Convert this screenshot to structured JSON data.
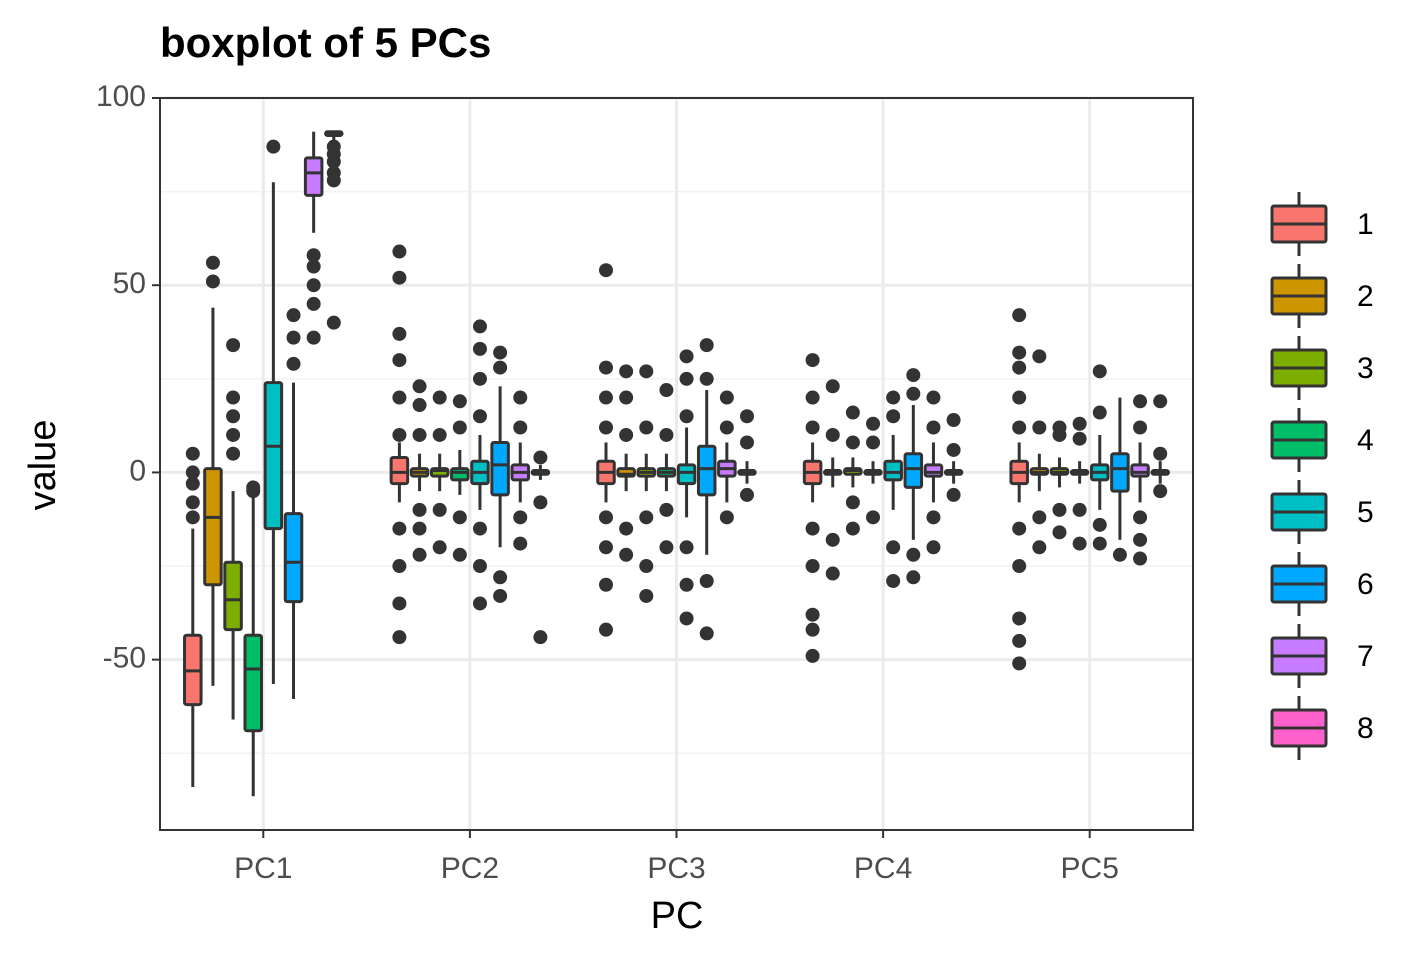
{
  "chart_data": {
    "type": "boxplot",
    "title": "boxplot of 5 PCs",
    "x_label": "PC",
    "y_label": "value",
    "categories": [
      "PC1",
      "PC2",
      "PC3",
      "PC4",
      "PC5"
    ],
    "ylim": [
      -95.5,
      100
    ],
    "yticks": [
      -50,
      0,
      50,
      100
    ],
    "minor_yticks": [
      -75,
      -25,
      25,
      75
    ],
    "grid": true,
    "legend_position": "right",
    "series": [
      {
        "name": "1",
        "color": "#F8766D",
        "boxes": [
          {
            "low": -84,
            "q1": -62,
            "median": -53,
            "q3": -43.5,
            "high": -15,
            "outliers": [
              -12,
              -8,
              -3,
              0,
              5
            ]
          },
          {
            "low": -8,
            "q1": -3,
            "median": 0,
            "q3": 4,
            "high": 8,
            "outliers": [
              -44,
              -35,
              -25,
              -15,
              10,
              20,
              30,
              37,
              52,
              59
            ]
          },
          {
            "low": -8,
            "q1": -3,
            "median": 0,
            "q3": 3,
            "high": 8,
            "outliers": [
              -42,
              -30,
              -20,
              -12,
              12,
              20,
              28,
              54
            ]
          },
          {
            "low": -8,
            "q1": -3,
            "median": 0,
            "q3": 3,
            "high": 8,
            "outliers": [
              -49,
              -42,
              -38,
              -25,
              -15,
              12,
              20,
              30
            ]
          },
          {
            "low": -8,
            "q1": -3,
            "median": 0,
            "q3": 3,
            "high": 8,
            "outliers": [
              -51,
              -45,
              -39,
              -25,
              -15,
              12,
              20,
              28,
              32,
              42
            ]
          }
        ]
      },
      {
        "name": "2",
        "color": "#CD9600",
        "boxes": [
          {
            "low": -57,
            "q1": -30,
            "median": -12,
            "q3": 1,
            "high": 44,
            "outliers": [
              51,
              56
            ]
          },
          {
            "low": -5,
            "q1": -1,
            "median": 0,
            "q3": 1,
            "high": 5,
            "outliers": [
              -22,
              -15,
              -10,
              10,
              18,
              23
            ]
          },
          {
            "low": -5,
            "q1": -1,
            "median": -0.5,
            "q3": 1,
            "high": 5,
            "outliers": [
              -22,
              -15,
              10,
              20,
              27
            ]
          },
          {
            "low": -4,
            "q1": -0.5,
            "median": 0,
            "q3": 0.5,
            "high": 4,
            "outliers": [
              -27,
              -18,
              10,
              23
            ]
          },
          {
            "low": -5,
            "q1": -0.5,
            "median": 0,
            "q3": 1,
            "high": 5,
            "outliers": [
              -20,
              -12,
              12,
              31
            ]
          }
        ]
      },
      {
        "name": "3",
        "color": "#7CAE00",
        "boxes": [
          {
            "low": -66,
            "q1": -42,
            "median": -34,
            "q3": -24,
            "high": -5,
            "outliers": [
              5,
              10,
              15,
              20,
              34
            ]
          },
          {
            "low": -5,
            "q1": -1,
            "median": 0.5,
            "q3": 1,
            "high": 5,
            "outliers": [
              -20,
              -10,
              10,
              20
            ]
          },
          {
            "low": -5,
            "q1": -1,
            "median": 0,
            "q3": 1,
            "high": 5,
            "outliers": [
              -33,
              -25,
              -12,
              12,
              27
            ]
          },
          {
            "low": -4,
            "q1": -0.5,
            "median": 0.5,
            "q3": 1,
            "high": 4,
            "outliers": [
              -15,
              -8,
              8,
              16
            ]
          },
          {
            "low": -4,
            "q1": -0.5,
            "median": 0,
            "q3": 1,
            "high": 4,
            "outliers": [
              -16,
              -10,
              10,
              12
            ]
          }
        ]
      },
      {
        "name": "4",
        "color": "#00BE67",
        "boxes": [
          {
            "low": -86.5,
            "q1": -69,
            "median": -52.5,
            "q3": -43.5,
            "high": -6,
            "outliers": [
              -5,
              -4
            ]
          },
          {
            "low": -6,
            "q1": -2,
            "median": 0,
            "q3": 1,
            "high": 6,
            "outliers": [
              -22,
              -12,
              12,
              19
            ]
          },
          {
            "low": -5,
            "q1": -1,
            "median": 0,
            "q3": 1,
            "high": 5,
            "outliers": [
              -20,
              -10,
              10,
              22
            ]
          },
          {
            "low": -3,
            "q1": -0.5,
            "median": 0,
            "q3": 0.5,
            "high": 3,
            "outliers": [
              -12,
              8,
              13
            ]
          },
          {
            "low": -3,
            "q1": -0.5,
            "median": 0,
            "q3": 0.5,
            "high": 3,
            "outliers": [
              -19,
              -10,
              9,
              13
            ]
          }
        ]
      },
      {
        "name": "5",
        "color": "#00BFC4",
        "boxes": [
          {
            "low": -56.5,
            "q1": -15,
            "median": 7,
            "q3": 24,
            "high": 77.5,
            "outliers": [
              87
            ]
          },
          {
            "low": -10,
            "q1": -3,
            "median": 0,
            "q3": 3,
            "high": 10,
            "outliers": [
              -35,
              -25,
              -15,
              15,
              25,
              33,
              39
            ]
          },
          {
            "low": -12,
            "q1": -3,
            "median": 0,
            "q3": 2,
            "high": 12,
            "outliers": [
              -39,
              -30,
              -20,
              15,
              25,
              31
            ]
          },
          {
            "low": -10,
            "q1": -2,
            "median": 0,
            "q3": 3,
            "high": 10,
            "outliers": [
              -29,
              -20,
              15,
              20
            ]
          },
          {
            "low": -10,
            "q1": -2,
            "median": 0,
            "q3": 2,
            "high": 10,
            "outliers": [
              -19,
              -14,
              16,
              27
            ]
          }
        ]
      },
      {
        "name": "6",
        "color": "#00A9FF",
        "boxes": [
          {
            "low": -60.5,
            "q1": -34.5,
            "median": -24,
            "q3": -11,
            "high": 24,
            "outliers": [
              29,
              36,
              42
            ]
          },
          {
            "low": -20,
            "q1": -6,
            "median": 2,
            "q3": 8,
            "high": 23,
            "outliers": [
              -33,
              -28,
              28,
              32
            ]
          },
          {
            "low": -22,
            "q1": -6,
            "median": 1,
            "q3": 7,
            "high": 22,
            "outliers": [
              -43,
              -29,
              25,
              34
            ]
          },
          {
            "low": -18,
            "q1": -4,
            "median": 1,
            "q3": 5,
            "high": 18,
            "outliers": [
              -28,
              -22,
              21,
              26
            ]
          },
          {
            "low": -18,
            "q1": -5,
            "median": 1,
            "q3": 5,
            "high": 20,
            "outliers": [
              -22
            ]
          }
        ]
      },
      {
        "name": "7",
        "color": "#C77CFF",
        "boxes": [
          {
            "low": 64,
            "q1": 74,
            "median": 80,
            "q3": 84,
            "high": 91,
            "outliers": [
              36,
              45,
              50,
              55,
              58
            ]
          },
          {
            "low": -8,
            "q1": -2,
            "median": 0,
            "q3": 2,
            "high": 8,
            "outliers": [
              -19,
              -12,
              12,
              20
            ]
          },
          {
            "low": -8,
            "q1": -1,
            "median": 1,
            "q3": 3,
            "high": 8,
            "outliers": [
              -12,
              12,
              20
            ]
          },
          {
            "low": -8,
            "q1": -1,
            "median": 0,
            "q3": 2,
            "high": 8,
            "outliers": [
              -20,
              -12,
              12,
              20
            ]
          },
          {
            "low": -8,
            "q1": -1,
            "median": 0,
            "q3": 2,
            "high": 8,
            "outliers": [
              -23,
              -18,
              -12,
              12,
              19
            ]
          }
        ]
      },
      {
        "name": "8",
        "color": "#FF61CC",
        "boxes": [
          {
            "low": 88,
            "q1": 90,
            "median": 90.5,
            "q3": 91,
            "high": 91,
            "outliers": [
              40,
              78,
              80,
              83,
              85,
              87
            ]
          },
          {
            "low": -2,
            "q1": -0.5,
            "median": 0,
            "q3": 0.5,
            "high": 2,
            "outliers": [
              -44,
              -8,
              4
            ]
          },
          {
            "low": -3,
            "q1": -0.5,
            "median": 0,
            "q3": 0.5,
            "high": 3,
            "outliers": [
              -6,
              8,
              15
            ]
          },
          {
            "low": -3,
            "q1": -0.5,
            "median": 0,
            "q3": 0.5,
            "high": 3,
            "outliers": [
              -6,
              6,
              14
            ]
          },
          {
            "low": -3,
            "q1": -0.5,
            "median": 0,
            "q3": 0.5,
            "high": 3,
            "outliers": [
              -5,
              5,
              19
            ]
          }
        ]
      }
    ]
  }
}
